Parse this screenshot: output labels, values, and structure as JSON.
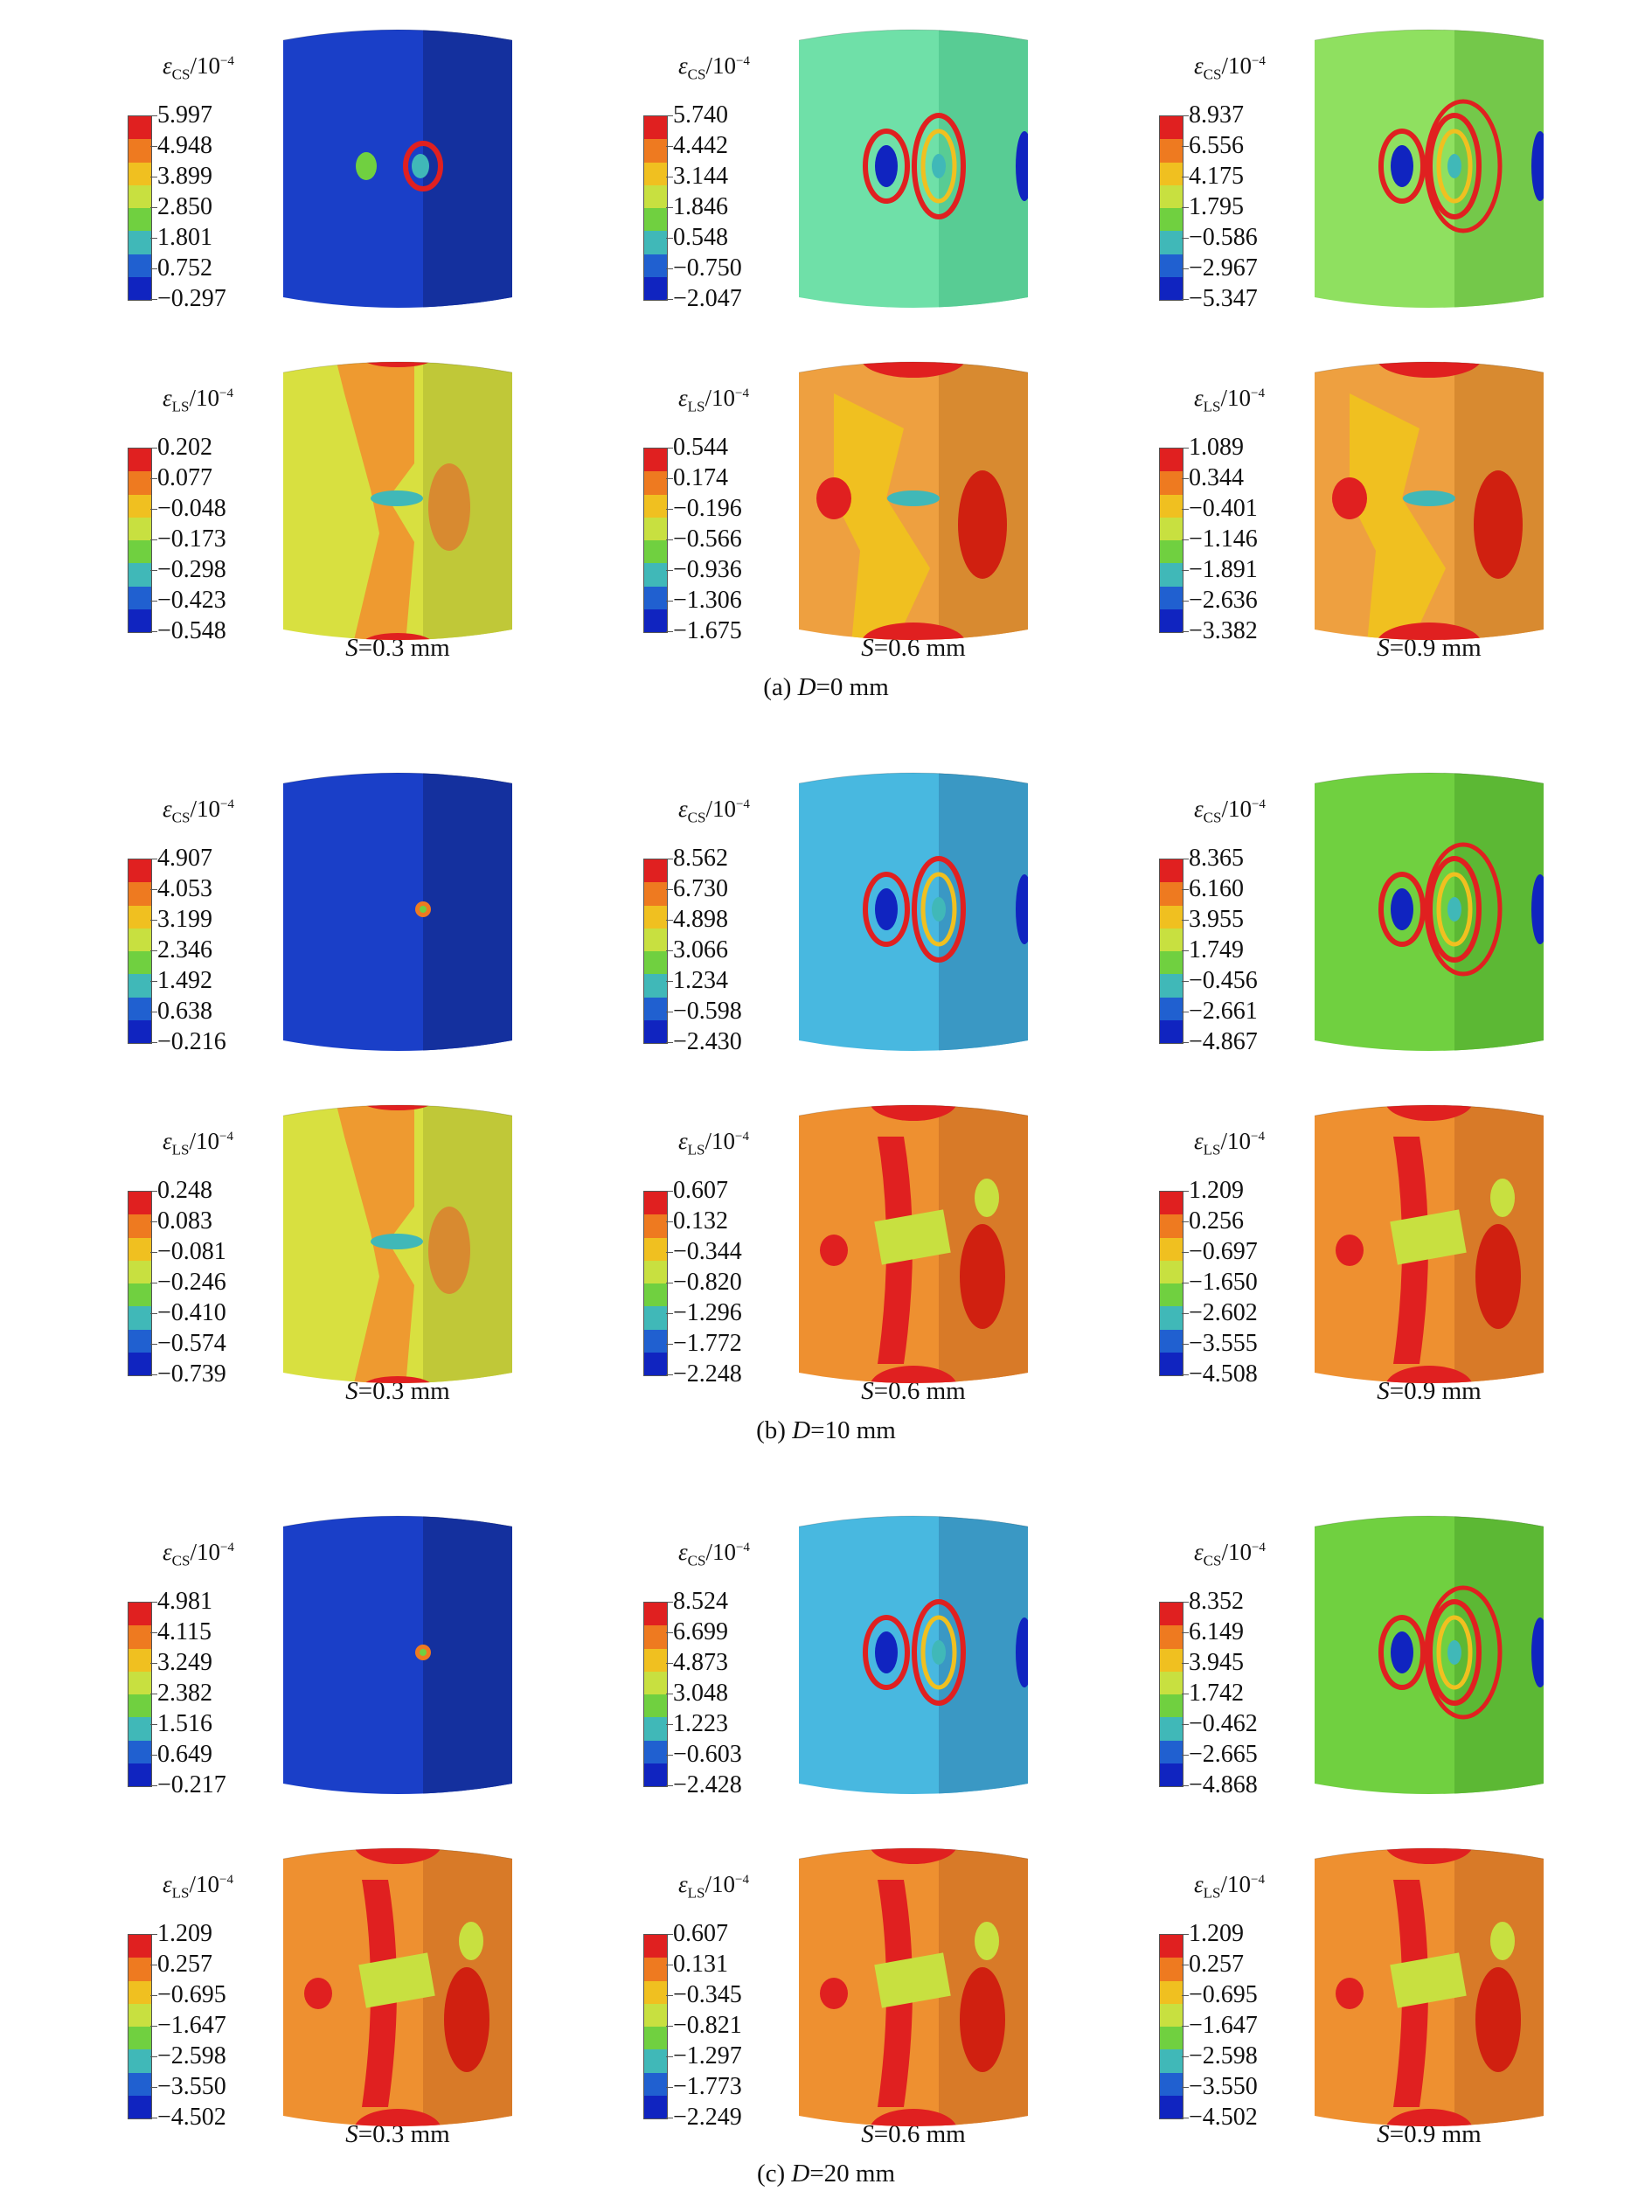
{
  "legend_colors": [
    "#e02020",
    "#ee7a20",
    "#f0c020",
    "#c8e040",
    "#70d040",
    "#40b8b8",
    "#2060d0",
    "#1024c0"
  ],
  "legend_titles": {
    "cs": "ε",
    "cs_sub": "CS",
    "ls": "ε",
    "ls_sub": "LS",
    "unit": "/10",
    "exp": "−4"
  },
  "groups": [
    {
      "caption_prefix": "(a) ",
      "caption_var": "D",
      "caption_val": "=0 mm",
      "rows": [
        {
          "kind": "cs",
          "cells": [
            {
              "s_var": "S",
              "s_val": "=0.3 mm",
              "values": [
                "5.997",
                "4.948",
                "3.899",
                "2.850",
                "1.801",
                "0.752",
                "−0.297"
              ],
              "bg": "#1a3fc8",
              "bg_dark": "#14309e",
              "pattern": "cs1"
            },
            {
              "s_var": "S",
              "s_val": "=0.6 mm",
              "values": [
                "5.740",
                "4.442",
                "3.144",
                "1.846",
                "0.548",
                "−0.750",
                "−2.047"
              ],
              "bg": "#6fe0a8",
              "bg_dark": "#58cc94",
              "pattern": "cs2"
            },
            {
              "s_var": "S",
              "s_val": "=0.9 mm",
              "values": [
                "8.937",
                "6.556",
                "4.175",
                "1.795",
                "−0.586",
                "−2.967",
                "−5.347"
              ],
              "bg": "#8fe060",
              "bg_dark": "#74c84a",
              "pattern": "cs3"
            }
          ]
        },
        {
          "kind": "ls",
          "cells": [
            {
              "s_var": "S",
              "s_val": "=0.3 mm",
              "values": [
                "0.202",
                "0.077",
                "−0.048",
                "−0.173",
                "−0.298",
                "−0.423",
                "−0.548"
              ],
              "bg": "#d8e040",
              "bg_dark": "#c0c838",
              "pattern": "ls1"
            },
            {
              "s_var": "S",
              "s_val": "=0.6 mm",
              "values": [
                "0.544",
                "0.174",
                "−0.196",
                "−0.566",
                "−0.936",
                "−1.306",
                "−1.675"
              ],
              "bg": "#eea040",
              "bg_dark": "#d88a30",
              "pattern": "ls2"
            },
            {
              "s_var": "S",
              "s_val": "=0.9 mm",
              "values": [
                "1.089",
                "0.344",
                "−0.401",
                "−1.146",
                "−1.891",
                "−2.636",
                "−3.382"
              ],
              "bg": "#eea040",
              "bg_dark": "#d88a30",
              "pattern": "ls2"
            }
          ]
        }
      ]
    },
    {
      "caption_prefix": "(b) ",
      "caption_var": "D",
      "caption_val": "=10 mm",
      "rows": [
        {
          "kind": "cs",
          "cells": [
            {
              "s_var": "S",
              "s_val": "=0.3 mm",
              "values": [
                "4.907",
                "4.053",
                "3.199",
                "2.346",
                "1.492",
                "0.638",
                "−0.216"
              ],
              "bg": "#1a3fc8",
              "bg_dark": "#14309e",
              "pattern": "cs0"
            },
            {
              "s_var": "S",
              "s_val": "=0.6 mm",
              "values": [
                "8.562",
                "6.730",
                "4.898",
                "3.066",
                "1.234",
                "−0.598",
                "−2.430"
              ],
              "bg": "#48b8e0",
              "bg_dark": "#3a98c4",
              "pattern": "cs2"
            },
            {
              "s_var": "S",
              "s_val": "=0.9 mm",
              "values": [
                "8.365",
                "6.160",
                "3.955",
                "1.749",
                "−0.456",
                "−2.661",
                "−4.867"
              ],
              "bg": "#70d040",
              "bg_dark": "#5cb834",
              "pattern": "cs3"
            }
          ]
        },
        {
          "kind": "ls",
          "cells": [
            {
              "s_var": "S",
              "s_val": "=0.3 mm",
              "values": [
                "0.248",
                "0.083",
                "−0.081",
                "−0.246",
                "−0.410",
                "−0.574",
                "−0.739"
              ],
              "bg": "#d8e040",
              "bg_dark": "#c0c838",
              "pattern": "ls1"
            },
            {
              "s_var": "S",
              "s_val": "=0.6 mm",
              "values": [
                "0.607",
                "0.132",
                "−0.344",
                "−0.820",
                "−1.296",
                "−1.772",
                "−2.248"
              ],
              "bg": "#ee9030",
              "bg_dark": "#d87a28",
              "pattern": "ls3"
            },
            {
              "s_var": "S",
              "s_val": "=0.9 mm",
              "values": [
                "1.209",
                "0.256",
                "−0.697",
                "−1.650",
                "−2.602",
                "−3.555",
                "−4.508"
              ],
              "bg": "#ee9030",
              "bg_dark": "#d87a28",
              "pattern": "ls3"
            }
          ]
        }
      ]
    },
    {
      "caption_prefix": "(c) ",
      "caption_var": "D",
      "caption_val": "=20 mm",
      "rows": [
        {
          "kind": "cs",
          "cells": [
            {
              "s_var": "S",
              "s_val": "=0.3 mm",
              "values": [
                "4.981",
                "4.115",
                "3.249",
                "2.382",
                "1.516",
                "0.649",
                "−0.217"
              ],
              "bg": "#1a3fc8",
              "bg_dark": "#14309e",
              "pattern": "cs0"
            },
            {
              "s_var": "S",
              "s_val": "=0.6 mm",
              "values": [
                "8.524",
                "6.699",
                "4.873",
                "3.048",
                "1.223",
                "−0.603",
                "−2.428"
              ],
              "bg": "#48b8e0",
              "bg_dark": "#3a98c4",
              "pattern": "cs2"
            },
            {
              "s_var": "S",
              "s_val": "=0.9 mm",
              "values": [
                "8.352",
                "6.149",
                "3.945",
                "1.742",
                "−0.462",
                "−2.665",
                "−4.868"
              ],
              "bg": "#70d040",
              "bg_dark": "#5cb834",
              "pattern": "cs3"
            }
          ]
        },
        {
          "kind": "ls",
          "cells": [
            {
              "s_var": "S",
              "s_val": "=0.3 mm",
              "values": [
                "1.209",
                "0.257",
                "−0.695",
                "−1.647",
                "−2.598",
                "−3.550",
                "−4.502"
              ],
              "bg": "#ee9030",
              "bg_dark": "#d87a28",
              "pattern": "ls3"
            },
            {
              "s_var": "S",
              "s_val": "=0.6 mm",
              "values": [
                "0.607",
                "0.131",
                "−0.345",
                "−0.821",
                "−1.297",
                "−1.773",
                "−2.249"
              ],
              "bg": "#ee9030",
              "bg_dark": "#d87a28",
              "pattern": "ls3"
            },
            {
              "s_var": "S",
              "s_val": "=0.9 mm",
              "values": [
                "1.209",
                "0.257",
                "−0.695",
                "−1.647",
                "−2.598",
                "−3.550",
                "−4.502"
              ],
              "bg": "#ee9030",
              "bg_dark": "#d87a28",
              "pattern": "ls3"
            }
          ]
        }
      ]
    }
  ]
}
